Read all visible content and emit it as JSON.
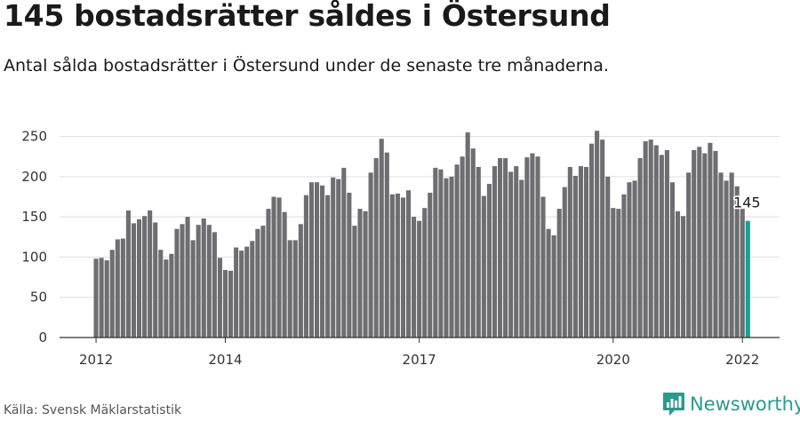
{
  "title": "145 bostadsrätter såldes i Östersund",
  "subtitle": "Antal sålda bostadsrätter i Östersund under de senaste tre månaderna.",
  "source": "Källa: Svensk Mäklarstatistik",
  "brand": {
    "name": "Newsworthy",
    "logo_icon": "newsworthy-chart-logo-icon",
    "color": "#2a9a8e"
  },
  "colors": {
    "bar": "#6e6d72",
    "highlight": "#1a9e96",
    "grid": "#dddddd",
    "axis": "#333333"
  },
  "chart_data": {
    "type": "bar",
    "title": "145 bostadsrätter såldes i Östersund",
    "subtitle": "Antal sålda bostadsrätter i Östersund under de senaste tre månaderna.",
    "x_start": "2012-01",
    "x_tick_labels": [
      "2012",
      "2014",
      "2017",
      "2020",
      "2022"
    ],
    "y_ticks": [
      0,
      50,
      100,
      150,
      200,
      250
    ],
    "ylim": [
      0,
      265
    ],
    "grid": true,
    "highlight_last": true,
    "last_value_label": "145",
    "values": [
      98,
      99,
      96,
      109,
      122,
      123,
      158,
      142,
      147,
      151,
      158,
      143,
      109,
      97,
      104,
      135,
      141,
      150,
      121,
      140,
      148,
      140,
      131,
      99,
      84,
      83,
      112,
      108,
      113,
      120,
      135,
      139,
      160,
      175,
      174,
      156,
      121,
      121,
      141,
      177,
      193,
      193,
      189,
      177,
      199,
      197,
      211,
      180,
      139,
      160,
      157,
      205,
      223,
      247,
      230,
      178,
      179,
      174,
      183,
      150,
      145,
      161,
      180,
      211,
      209,
      198,
      200,
      215,
      225,
      255,
      235,
      212,
      176,
      191,
      213,
      223,
      223,
      206,
      213,
      196,
      224,
      229,
      225,
      175,
      135,
      127,
      160,
      187,
      212,
      201,
      213,
      212,
      241,
      257,
      246,
      200,
      161,
      160,
      178,
      193,
      195,
      223,
      244,
      246,
      239,
      227,
      233,
      193,
      157,
      151,
      205,
      233,
      237,
      229,
      242,
      232,
      205,
      195,
      205,
      188,
      160,
      145
    ]
  }
}
